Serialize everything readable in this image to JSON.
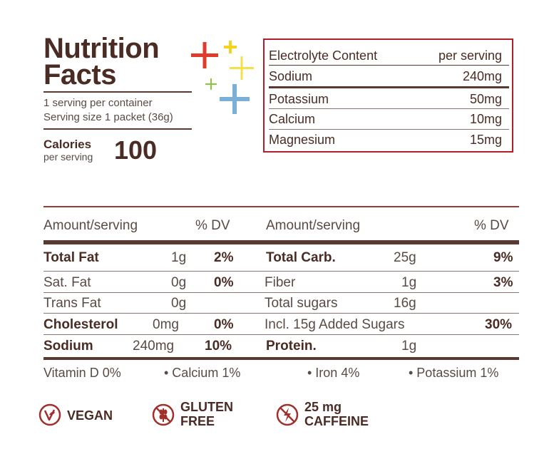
{
  "header": {
    "title_line1": "Nutrition",
    "title_line2": "Facts",
    "servings_per_container": "1 serving per container",
    "serving_size": "Serving size 1 packet (36g)",
    "calories_label": "Calories",
    "calories_sub": "per serving",
    "calories_value": "100"
  },
  "electrolytes": {
    "title": "Electrolyte Content",
    "per": "per serving",
    "rows": [
      {
        "name": "Sodium",
        "value": "240mg"
      },
      {
        "name": "Potassium",
        "value": "50mg"
      },
      {
        "name": "Calcium",
        "value": "10mg"
      },
      {
        "name": "Magnesium",
        "value": "15mg"
      }
    ]
  },
  "table": {
    "amount_header": "Amount/serving",
    "dv_header": "% DV",
    "left": [
      {
        "name": "Total Fat",
        "amount": "1g",
        "dv": "2%"
      },
      {
        "name": "Sat. Fat",
        "amount": "0g",
        "dv": "0%"
      },
      {
        "name": "Trans Fat",
        "amount": "0g",
        "dv": ""
      },
      {
        "name": "Cholesterol",
        "amount": "0mg",
        "dv": "0%"
      },
      {
        "name": "Sodium",
        "amount": "240mg",
        "dv": "10%"
      }
    ],
    "right": [
      {
        "name": "Total Carb.",
        "amount": "25g",
        "dv": "9%"
      },
      {
        "name": "Fiber",
        "amount": "1g",
        "dv": "3%"
      },
      {
        "name": "Total sugars",
        "amount": "16g",
        "dv": ""
      },
      {
        "name": "Incl. 15g Added Sugars",
        "amount": "",
        "dv": "30%"
      },
      {
        "name": "Protein.",
        "amount": "1g",
        "dv": ""
      }
    ]
  },
  "vitamins": {
    "vitamin_d": "Vitamin D 0%",
    "calcium": "• Calcium 1%",
    "iron": "• Iron 4%",
    "potassium": "• Potassium 1%"
  },
  "badges": {
    "vegan": "VEGAN",
    "gluten_line1": "GLUTEN",
    "gluten_line2": "FREE",
    "caffeine_line1": "25 mg",
    "caffeine_line2": "CAFFEINE"
  },
  "colors": {
    "brown": "#4a2c24",
    "red_accent": "#b02028",
    "plus_red": "#e03a2a",
    "plus_yellow": "#f5d21e",
    "plus_green": "#8cc63f",
    "plus_blue": "#7ab0d8"
  },
  "icons": [
    "plus-red-icon",
    "plus-yellow-icon",
    "plus-green-icon",
    "plus-blue-icon",
    "vegan-leaf-icon",
    "gluten-free-icon",
    "caffeine-bolt-icon"
  ]
}
